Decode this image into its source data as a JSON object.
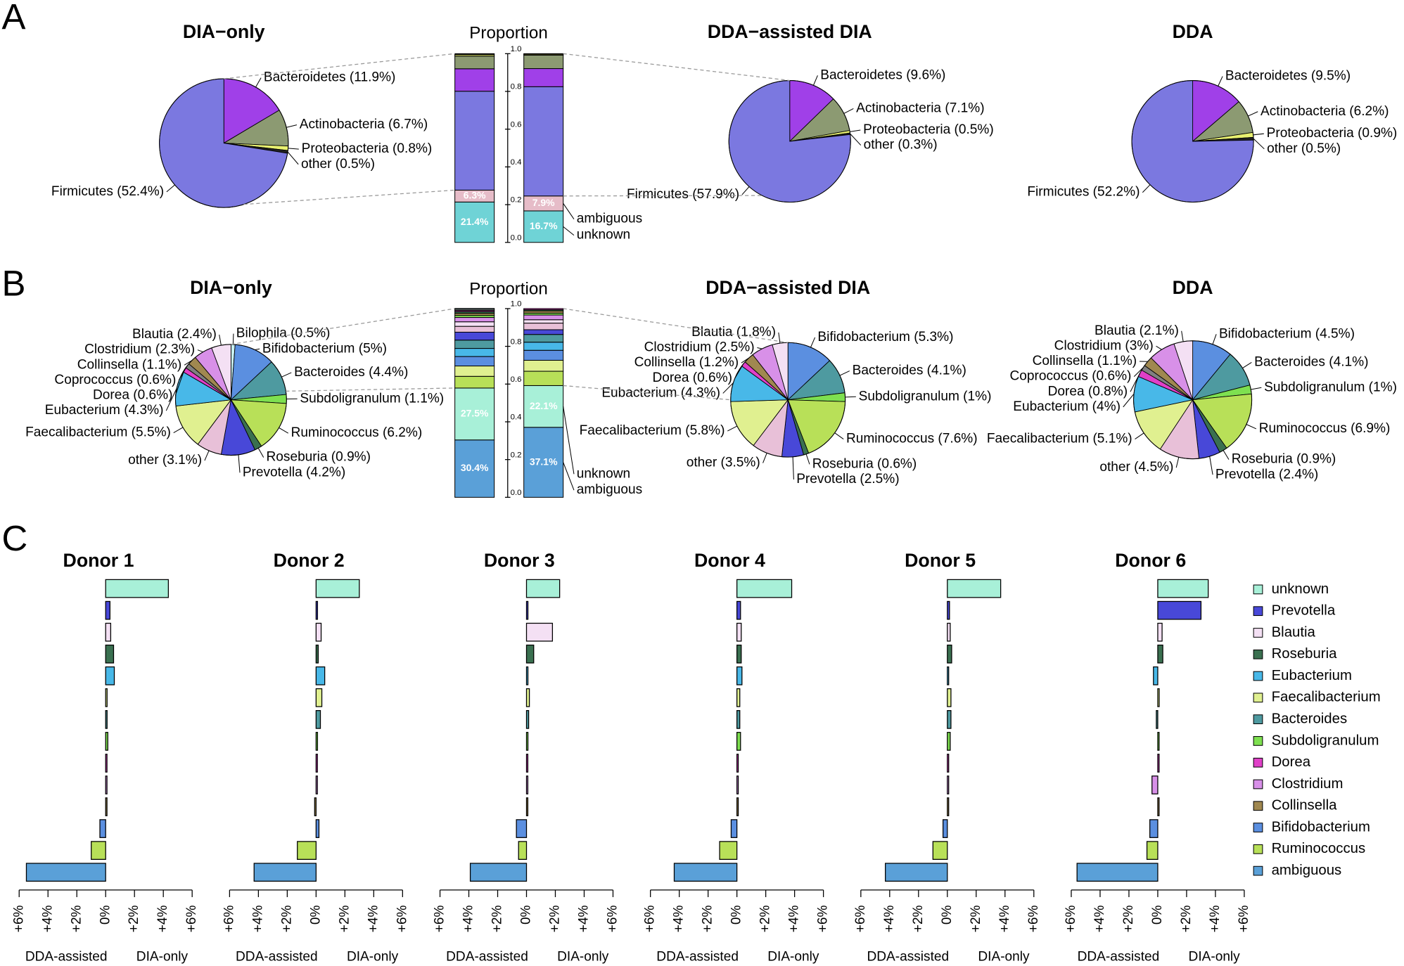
{
  "panel_labels": [
    "A",
    "B",
    "C"
  ],
  "chart_data": [
    {
      "type": "pie",
      "title": "DIA−only",
      "labels": [
        "Bacteroidetes (11.9%)",
        "Actinobacteria (6.7%)",
        "Proteobacteria (0.8%)",
        "other (0.5%)",
        "Firmicutes (52.4%)"
      ],
      "values": [
        11.9,
        6.7,
        0.8,
        0.5,
        52.4
      ],
      "colors": [
        "#a040e8",
        "#8c9a72",
        "#e8f070",
        "#222222",
        "#7b78e0"
      ]
    },
    {
      "type": "proportion",
      "title": "Proportion",
      "ylim": [
        0,
        1
      ],
      "yticks": [
        {
          "value": 0,
          "label": "0.0"
        },
        0.2,
        0.4,
        0.6,
        0.8,
        {
          "value": 1,
          "label": "1.0"
        }
      ],
      "annotations": [
        "ambiguous",
        "unknown"
      ],
      "segments": [
        {
          "color": "#6fd3d6",
          "values": [
            0.214,
            0.167
          ],
          "value_labels": [
            "21.4%",
            "16.7%"
          ]
        },
        {
          "color": "#e6bcc8",
          "values": [
            0.063,
            0.079
          ],
          "value_labels": [
            "6.3%",
            "7.9%"
          ]
        },
        {
          "color": "#7b78e0",
          "values": [
            0.524,
            0.579
          ]
        },
        {
          "color": "#a040e8",
          "values": [
            0.119,
            0.096
          ]
        },
        {
          "color": "#8c9a72",
          "values": [
            0.067,
            0.071
          ]
        },
        {
          "color": "#e8f070",
          "values": [
            0.008,
            0.005
          ]
        },
        {
          "color": "#222222",
          "values": [
            0.005,
            0.003
          ]
        }
      ]
    },
    {
      "type": "pie",
      "title": "DDA−assisted DIA",
      "labels": [
        "Bacteroidetes (9.6%)",
        "Actinobacteria (7.1%)",
        "Proteobacteria (0.5%)",
        "other (0.3%)",
        "Firmicutes (57.9%)"
      ],
      "values": [
        9.6,
        7.1,
        0.5,
        0.3,
        57.9
      ],
      "colors": [
        "#a040e8",
        "#8c9a72",
        "#e8f070",
        "#222222",
        "#7b78e0"
      ]
    },
    {
      "type": "pie",
      "title": "DDA",
      "labels": [
        "Bacteroidetes (9.5%)",
        "Actinobacteria (6.2%)",
        "Proteobacteria (0.9%)",
        "other (0.5%)",
        "Firmicutes (52.2%)"
      ],
      "values": [
        9.5,
        6.2,
        0.9,
        0.5,
        52.2
      ],
      "colors": [
        "#a040e8",
        "#8c9a72",
        "#e8f070",
        "#222222",
        "#7b78e0"
      ]
    },
    {
      "type": "pie",
      "title": "DIA−only",
      "labels": [
        "Bilophila (0.5%)",
        "Bifidobacterium (5%)",
        "Bacteroides (4.4%)",
        "Subdoligranulum (1.1%)",
        "Ruminococcus (6.2%)",
        "Roseburia (0.9%)",
        "Prevotella (4.2%)",
        "other (3.1%)",
        "Faecalibacterium (5.5%)",
        "Eubacterium (4.3%)",
        "Dorea (0.6%)",
        "Coprococcus (0.6%)",
        "Collinsella (1.1%)",
        "Clostridium (2.3%)",
        "Blautia (2.4%)"
      ],
      "values": [
        0.5,
        5,
        4.4,
        1.1,
        6.2,
        0.9,
        4.2,
        3.1,
        5.5,
        4.3,
        0.6,
        0.6,
        1.1,
        2.3,
        2.4
      ],
      "colors": [
        "#c8f0f0",
        "#5b8fe0",
        "#4e9aa0",
        "#7ee050",
        "#b8e058",
        "#3a7050",
        "#4848d8",
        "#e8c0d8",
        "#e0f090",
        "#48b8e8",
        "#e040c8",
        "#808080",
        "#a08850",
        "#d890e8",
        "#f4e0f4"
      ]
    },
    {
      "type": "proportion",
      "title": "Proportion",
      "ylim": [
        0,
        1
      ],
      "yticks": [
        {
          "value": 0,
          "label": "0.0"
        },
        0.2,
        0.4,
        0.6,
        0.8,
        {
          "value": 1,
          "label": "1.0"
        }
      ],
      "annotations": [
        "unknown",
        "ambiguous"
      ],
      "segments": [
        {
          "color": "#5aa0d8",
          "values": [
            0.304,
            0.371
          ],
          "value_labels": [
            "30.4%",
            "37.1%"
          ]
        },
        {
          "color": "#a8f0d8",
          "values": [
            0.275,
            0.221
          ],
          "value_labels": [
            "27.5%",
            "22.1%"
          ]
        },
        {
          "color": "#b8e058",
          "values": [
            0.062,
            0.076
          ]
        },
        {
          "color": "#e0f090",
          "values": [
            0.055,
            0.058
          ]
        },
        {
          "color": "#5b8fe0",
          "values": [
            0.05,
            0.053
          ]
        },
        {
          "color": "#48b8e8",
          "values": [
            0.043,
            0.043
          ]
        },
        {
          "color": "#4e9aa0",
          "values": [
            0.044,
            0.041
          ]
        },
        {
          "color": "#4848d8",
          "values": [
            0.042,
            0.025
          ]
        },
        {
          "color": "#e8c0d8",
          "values": [
            0.031,
            0.035
          ]
        },
        {
          "color": "#f4e0f4",
          "values": [
            0.024,
            0.018
          ]
        },
        {
          "color": "#d890e8",
          "values": [
            0.023,
            0.025
          ]
        },
        {
          "color": "#7ee050",
          "values": [
            0.011,
            0.01
          ]
        },
        {
          "color": "#a08850",
          "values": [
            0.011,
            0.012
          ]
        },
        {
          "color": "#3a7050",
          "values": [
            0.009,
            0.006
          ]
        },
        {
          "color": "#e040c8",
          "values": [
            0.006,
            0.006
          ]
        },
        {
          "color": "#808080",
          "values": [
            0.006,
            null
          ]
        },
        {
          "color": "#c8f0f0",
          "values": [
            0.005,
            null
          ]
        }
      ]
    },
    {
      "type": "pie",
      "title": "DDA−assisted DIA",
      "labels": [
        "Bifidobacterium (5.3%)",
        "Bacteroides (4.1%)",
        "Subdoligranulum (1%)",
        "Ruminococcus (7.6%)",
        "Roseburia (0.6%)",
        "Prevotella (2.5%)",
        "other (3.5%)",
        "Faecalibacterium (5.8%)",
        "Eubacterium (4.3%)",
        "Dorea (0.6%)",
        "Collinsella (1.2%)",
        "Clostridium (2.5%)",
        "Blautia (1.8%)"
      ],
      "values": [
        5.3,
        4.1,
        1,
        7.6,
        0.6,
        2.5,
        3.5,
        5.8,
        4.3,
        0.6,
        1.2,
        2.5,
        1.8
      ],
      "colors": [
        "#5b8fe0",
        "#4e9aa0",
        "#7ee050",
        "#b8e058",
        "#3a7050",
        "#4848d8",
        "#e8c0d8",
        "#e0f090",
        "#48b8e8",
        "#e040c8",
        "#a08850",
        "#d890e8",
        "#f4e0f4"
      ]
    },
    {
      "type": "pie",
      "title": "DDA",
      "labels": [
        "Bifidobacterium (4.5%)",
        "Bacteroides (4.1%)",
        "Subdoligranulum (1%)",
        "Ruminococcus (6.9%)",
        "Roseburia (0.9%)",
        "Prevotella (2.4%)",
        "other (4.5%)",
        "Faecalibacterium (5.1%)",
        "Eubacterium (4%)",
        "Dorea (0.8%)",
        "Coprococcus (0.6%)",
        "Collinsella (1.1%)",
        "Clostridium (3%)",
        "Blautia (2.1%)"
      ],
      "values": [
        4.5,
        4.1,
        1,
        6.9,
        0.9,
        2.4,
        4.5,
        5.1,
        4,
        0.8,
        0.6,
        1.1,
        3,
        2.1
      ],
      "colors": [
        "#5b8fe0",
        "#4e9aa0",
        "#7ee050",
        "#b8e058",
        "#3a7050",
        "#4848d8",
        "#e8c0d8",
        "#e0f090",
        "#48b8e8",
        "#e040c8",
        "#808080",
        "#a08850",
        "#d890e8",
        "#f4e0f4"
      ]
    },
    {
      "type": "diverging-bar",
      "categories": [
        "Donor 1",
        "Donor 2",
        "Donor 3",
        "Donor 4",
        "Donor 5",
        "Donor 6"
      ],
      "xlim": [
        -6,
        6
      ],
      "xticks": [
        {
          "value": -6,
          "label": "+6%"
        },
        {
          "value": -4,
          "label": "+4%"
        },
        {
          "value": -2,
          "label": "+2%"
        },
        {
          "value": 0,
          "label": "0%"
        },
        {
          "value": 2,
          "label": "+2%"
        },
        {
          "value": 4,
          "label": "+4%"
        },
        {
          "value": 6,
          "label": "+6%"
        }
      ],
      "x_labels": [
        "DDA-assisted",
        "DIA-only"
      ],
      "series": [
        {
          "name": "unknown",
          "color": "#a8f0d8",
          "values": [
            4.35,
            3.0,
            2.3,
            3.8,
            3.7,
            3.5
          ]
        },
        {
          "name": "Prevotella",
          "color": "#4848d8",
          "values": [
            0.3,
            0.1,
            0.1,
            0.25,
            0.15,
            3.0
          ]
        },
        {
          "name": "Blautia",
          "color": "#f4e0f4",
          "values": [
            0.35,
            0.35,
            1.8,
            0.3,
            0.2,
            0.3
          ]
        },
        {
          "name": "Roseburia",
          "color": "#3a7050",
          "values": [
            0.55,
            0.15,
            0.5,
            0.3,
            0.3,
            0.35
          ]
        },
        {
          "name": "Eubacterium",
          "color": "#48b8e8",
          "values": [
            0.6,
            0.6,
            0.1,
            0.35,
            0.05,
            -0.3
          ]
        },
        {
          "name": "Faecalibacterium",
          "color": "#e0f090",
          "values": [
            0.1,
            0.4,
            0.2,
            0.2,
            0.25,
            0.1
          ]
        },
        {
          "name": "Bacteroides",
          "color": "#4e9aa0",
          "values": [
            0.1,
            0.3,
            0.15,
            0.2,
            0.25,
            -0.1
          ]
        },
        {
          "name": "Subdoligranulum",
          "color": "#7ee050",
          "values": [
            0.15,
            0.1,
            0.1,
            0.25,
            0.2,
            0.05
          ]
        },
        {
          "name": "Dorea",
          "color": "#e040c8",
          "values": [
            0.05,
            0.05,
            0.05,
            0.05,
            0.05,
            0.05
          ]
        },
        {
          "name": "Clostridium",
          "color": "#d890e8",
          "values": [
            0.05,
            0.05,
            0.05,
            0.05,
            0.05,
            -0.4
          ]
        },
        {
          "name": "Collinsella",
          "color": "#a08850",
          "values": [
            0.05,
            -0.1,
            0.05,
            0.05,
            0.05,
            0.05
          ]
        },
        {
          "name": "Bifidobacterium",
          "color": "#5b8fe0",
          "values": [
            -0.4,
            0.2,
            -0.7,
            -0.4,
            -0.3,
            -0.55
          ]
        },
        {
          "name": "Ruminococcus",
          "color": "#b8e058",
          "values": [
            -1.0,
            -1.3,
            -0.55,
            -1.2,
            -1.0,
            -0.75
          ]
        },
        {
          "name": "ambiguous",
          "color": "#5aa0d8",
          "values": [
            -5.5,
            -4.3,
            -3.9,
            -4.35,
            -4.3,
            -5.6
          ]
        }
      ]
    }
  ]
}
